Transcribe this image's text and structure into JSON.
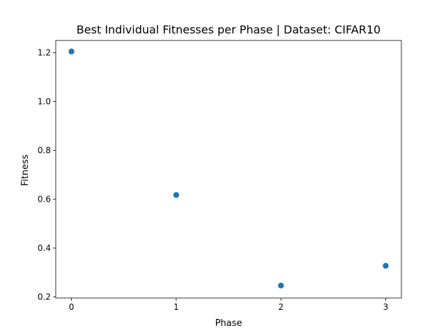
{
  "chart_data": {
    "type": "scatter",
    "title": "Best Individual Fitnesses per Phase | Dataset: CIFAR10",
    "xlabel": "Phase",
    "ylabel": "Fitness",
    "x_ticks": [
      0,
      1,
      2,
      3
    ],
    "y_ticks": [
      0.2,
      0.4,
      0.6,
      0.8,
      1.0,
      1.2
    ],
    "y_tick_labels": [
      "0.2",
      "0.4",
      "0.6",
      "0.8",
      "1.0",
      "1.2"
    ],
    "xlim": [
      -0.15,
      3.15
    ],
    "ylim": [
      0.195,
      1.25
    ],
    "grid": false,
    "series": [
      {
        "color": "#1f77b4",
        "x": [
          0,
          1,
          2,
          3
        ],
        "y": [
          1.205,
          0.617,
          0.246,
          0.327
        ]
      }
    ]
  }
}
